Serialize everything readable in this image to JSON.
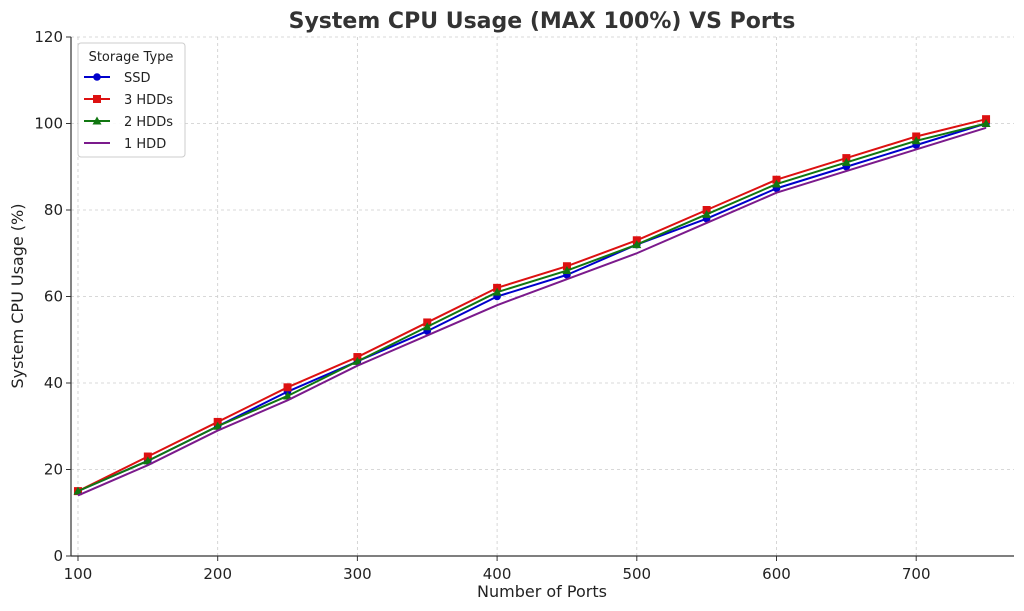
{
  "chart_data": {
    "type": "line",
    "title": "System CPU Usage (MAX 100%) VS Ports",
    "xlabel": "Number of Ports",
    "ylabel": "System CPU Usage (%)",
    "xlim": [
      95,
      770
    ],
    "ylim": [
      0,
      120
    ],
    "x_ticks": [
      100,
      200,
      300,
      400,
      500,
      600,
      700
    ],
    "y_ticks": [
      0,
      20,
      40,
      60,
      80,
      100,
      120
    ],
    "grid": true,
    "legend": {
      "title": "Storage Type",
      "placement": "top-left"
    },
    "x": [
      100,
      150,
      200,
      250,
      300,
      350,
      400,
      450,
      500,
      550,
      600,
      650,
      700,
      750
    ],
    "series": [
      {
        "name": "SSD",
        "color": "#0000cc",
        "marker": "circle",
        "values": [
          15,
          22,
          30,
          38,
          45,
          52,
          60,
          65,
          72,
          78,
          85,
          90,
          95,
          100
        ]
      },
      {
        "name": "3 HDDs",
        "color": "#dd1111",
        "marker": "square",
        "values": [
          15,
          23,
          31,
          39,
          46,
          54,
          62,
          67,
          73,
          80,
          87,
          92,
          97,
          101
        ]
      },
      {
        "name": "2 HDDs",
        "color": "#117711",
        "marker": "triangle",
        "values": [
          15,
          22,
          30,
          37,
          45,
          53,
          61,
          66,
          72,
          79,
          86,
          91,
          96,
          100
        ]
      },
      {
        "name": "1 HDD",
        "color": "#7b1a8c",
        "marker": "none",
        "values": [
          14,
          21,
          29,
          36,
          44,
          51,
          58,
          64,
          70,
          77,
          84,
          89,
          94,
          99
        ]
      }
    ]
  }
}
